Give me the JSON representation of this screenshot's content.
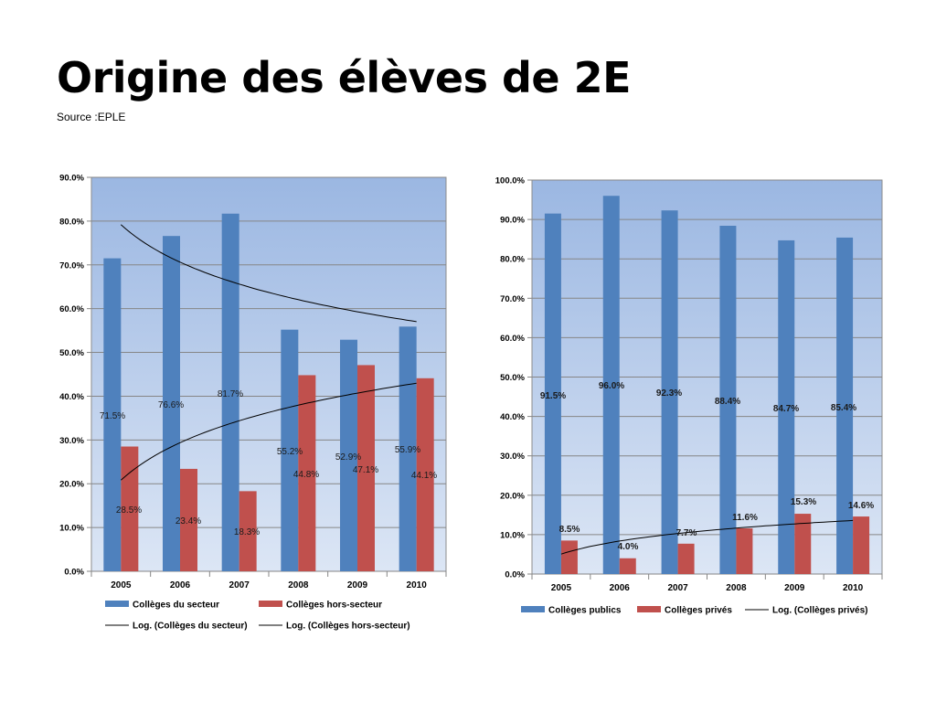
{
  "slide": {
    "title": "Origine des élèves de 2E",
    "source": "Source :EPLE"
  },
  "colors": {
    "plot_gradient_top": "#9bb7e2",
    "plot_gradient_bottom": "#dce6f5",
    "blue": "#4f81bd",
    "red": "#c0504d",
    "trend": "#000000"
  },
  "chart_data": [
    {
      "type": "bar",
      "title": "",
      "xlabel": "",
      "ylabel": "",
      "ylim": [
        0,
        90
      ],
      "yticks": [
        0,
        10,
        20,
        30,
        40,
        50,
        60,
        70,
        80,
        90
      ],
      "ytick_labels": [
        "0.0%",
        "10.0%",
        "20.0%",
        "30.0%",
        "40.0%",
        "50.0%",
        "60.0%",
        "70.0%",
        "80.0%",
        "90.0%"
      ],
      "categories": [
        "2005",
        "2006",
        "2007",
        "2008",
        "2009",
        "2010"
      ],
      "grid": true,
      "legend_position": "bottom",
      "series": [
        {
          "name": "Collèges du secteur",
          "color": "#4f81bd",
          "values": [
            71.5,
            76.6,
            81.7,
            55.2,
            52.9,
            55.9
          ],
          "labels": [
            "71.5%",
            "76.6%",
            "81.7%",
            "55.2%",
            "52.9%",
            "55.9%"
          ]
        },
        {
          "name": "Collèges  hors-secteur",
          "color": "#c0504d",
          "values": [
            28.5,
            23.4,
            18.3,
            44.8,
            47.1,
            44.1
          ],
          "labels": [
            "28.5%",
            "23.4%",
            "18.3%",
            "44.8%",
            "47.1%",
            "44.1%"
          ]
        }
      ],
      "trendlines": [
        {
          "name": "Log. (Collèges du secteur)",
          "type": "logarithmic",
          "series": 0
        },
        {
          "name": "Log. (Collèges  hors-secteur)",
          "type": "logarithmic",
          "series": 1
        }
      ]
    },
    {
      "type": "bar",
      "title": "",
      "xlabel": "",
      "ylabel": "",
      "ylim": [
        0,
        100
      ],
      "yticks": [
        0,
        10,
        20,
        30,
        40,
        50,
        60,
        70,
        80,
        90,
        100
      ],
      "ytick_labels": [
        "0.0%",
        "10.0%",
        "20.0%",
        "30.0%",
        "40.0%",
        "50.0%",
        "60.0%",
        "70.0%",
        "80.0%",
        "90.0%",
        "100.0%"
      ],
      "categories": [
        "2005",
        "2006",
        "2007",
        "2008",
        "2009",
        "2010"
      ],
      "grid": true,
      "legend_position": "bottom",
      "series": [
        {
          "name": "Collèges publics",
          "color": "#4f81bd",
          "values": [
            91.5,
            96.0,
            92.3,
            88.4,
            84.7,
            85.4
          ],
          "labels": [
            "91.5%",
            "96.0%",
            "92.3%",
            "88.4%",
            "84.7%",
            "85.4%"
          ]
        },
        {
          "name": "Collèges privés",
          "color": "#c0504d",
          "values": [
            8.5,
            4.0,
            7.7,
            11.6,
            15.3,
            14.6
          ],
          "labels": [
            "8.5%",
            "4.0%",
            "7.7%",
            "11.6%",
            "15.3%",
            "14.6%"
          ]
        }
      ],
      "trendlines": [
        {
          "name": "Log. (Collèges privés)",
          "type": "logarithmic",
          "series": 1
        }
      ]
    }
  ]
}
